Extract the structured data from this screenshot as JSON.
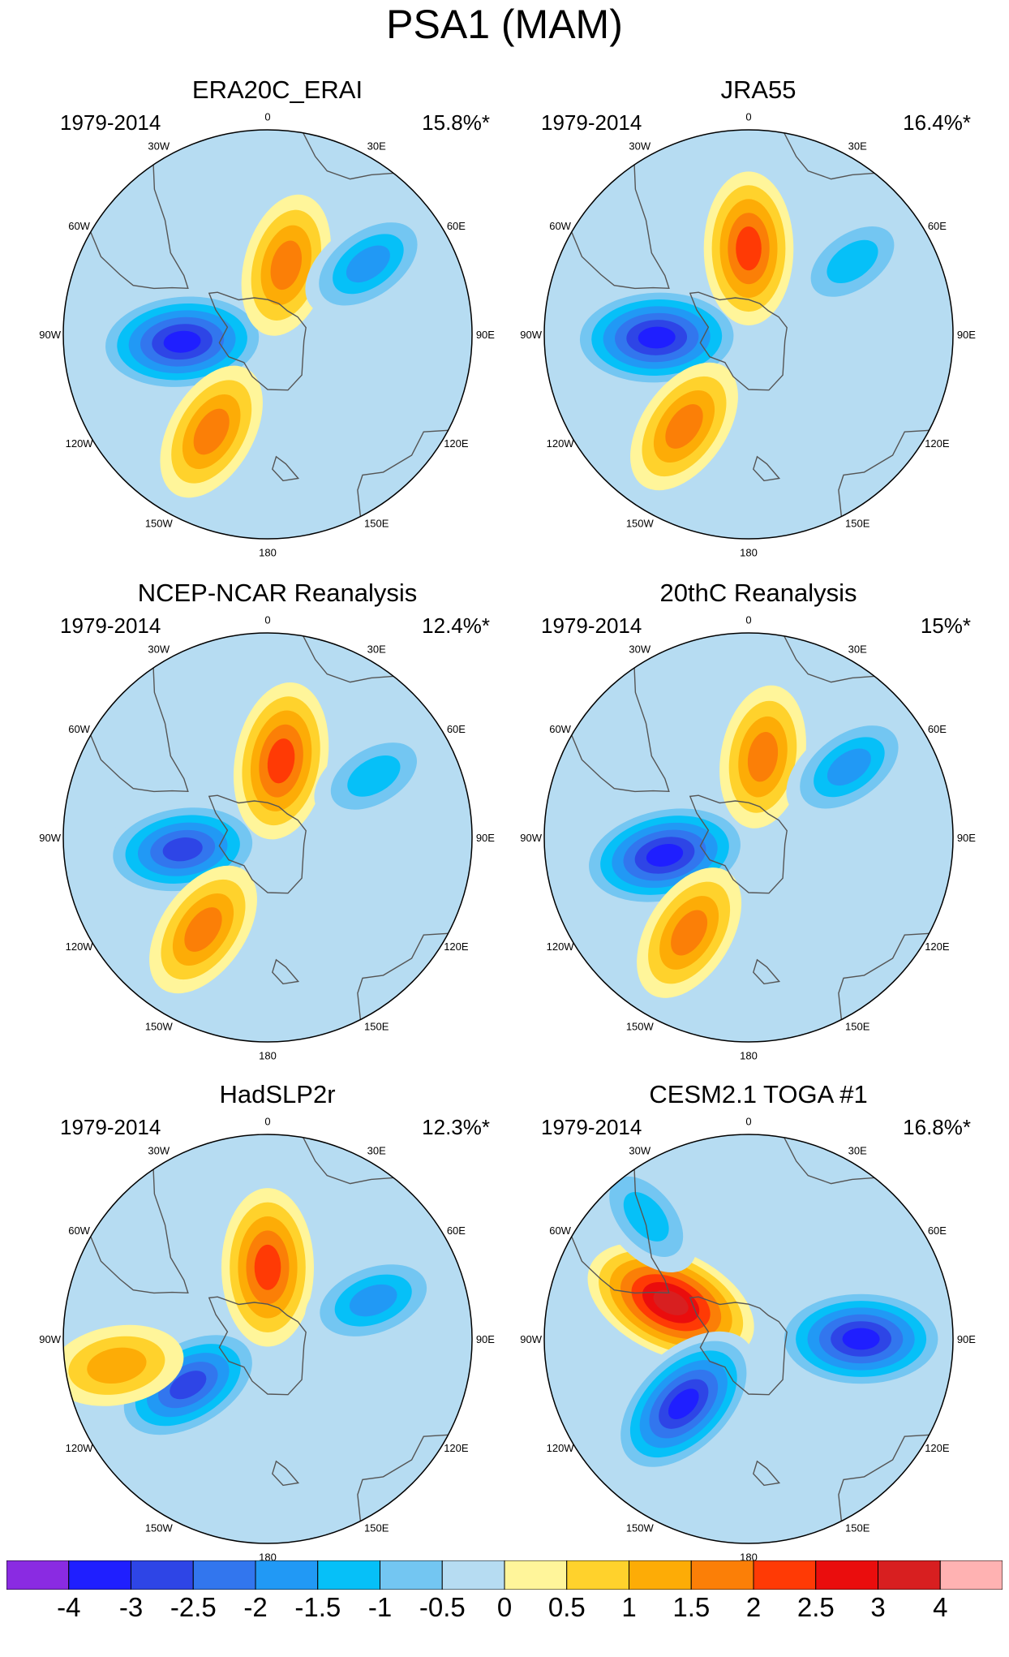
{
  "figure": {
    "title": "PSA1 (MAM)",
    "longitude_labels": [
      "0",
      "30E",
      "60E",
      "90E",
      "120E",
      "150E",
      "180",
      "150W",
      "120W",
      "90W",
      "60W",
      "30W"
    ],
    "panels": [
      {
        "title": "ERA20C_ERAI",
        "period": "1979-2014",
        "variance": "15.8%*",
        "features": [
          {
            "kind": "neg",
            "lon": 265,
            "colat": 0.42,
            "peak": -3.0
          },
          {
            "kind": "pos",
            "lon": 210,
            "colat": 0.55,
            "peak": 1.6
          },
          {
            "kind": "pos",
            "lon": 15,
            "colat": 0.35,
            "peak": 1.6
          },
          {
            "kind": "neg",
            "lon": 55,
            "colat": 0.6,
            "peak": -1.5
          }
        ]
      },
      {
        "title": "JRA55",
        "period": "1979-2014",
        "variance": "16.4%*",
        "features": [
          {
            "kind": "neg",
            "lon": 268,
            "colat": 0.45,
            "peak": -3.0
          },
          {
            "kind": "pos",
            "lon": 215,
            "colat": 0.55,
            "peak": 1.6
          },
          {
            "kind": "pos",
            "lon": 0,
            "colat": 0.42,
            "peak": 2.0
          },
          {
            "kind": "neg",
            "lon": 55,
            "colat": 0.62,
            "peak": -1.0
          }
        ]
      },
      {
        "title": "NCEP-NCAR Reanalysis",
        "period": "1979-2014",
        "variance": "12.4%*",
        "features": [
          {
            "kind": "neg",
            "lon": 262,
            "colat": 0.42,
            "peak": -2.5
          },
          {
            "kind": "pos",
            "lon": 215,
            "colat": 0.55,
            "peak": 1.6
          },
          {
            "kind": "pos",
            "lon": 10,
            "colat": 0.38,
            "peak": 2.2
          },
          {
            "kind": "neg",
            "lon": 60,
            "colat": 0.6,
            "peak": -1.0
          }
        ]
      },
      {
        "title": "20thC Reanalysis",
        "period": "1979-2014",
        "variance": "15%*",
        "features": [
          {
            "kind": "neg",
            "lon": 258,
            "colat": 0.42,
            "peak": -3.0
          },
          {
            "kind": "pos",
            "lon": 212,
            "colat": 0.55,
            "peak": 1.6
          },
          {
            "kind": "pos",
            "lon": 10,
            "colat": 0.4,
            "peak": 1.6
          },
          {
            "kind": "neg",
            "lon": 55,
            "colat": 0.6,
            "peak": -1.5
          }
        ]
      },
      {
        "title": "HadSLP2r",
        "period": "1979-2014",
        "variance": "12.3%*",
        "features": [
          {
            "kind": "neg",
            "lon": 240,
            "colat": 0.45,
            "peak": -2.5
          },
          {
            "kind": "pos",
            "lon": 260,
            "colat": 0.75,
            "peak": 1.2
          },
          {
            "kind": "pos",
            "lon": 0,
            "colat": 0.35,
            "peak": 2.2
          },
          {
            "kind": "neg",
            "lon": 70,
            "colat": 0.55,
            "peak": -1.5
          }
        ]
      },
      {
        "title": "CESM2.1 TOGA #1",
        "period": "1979-2014",
        "variance": "16.8%*",
        "features": [
          {
            "kind": "pos",
            "lon": 295,
            "colat": 0.42,
            "peak": 3.0
          },
          {
            "kind": "neg",
            "lon": 225,
            "colat": 0.45,
            "peak": -3.0
          },
          {
            "kind": "neg",
            "lon": 90,
            "colat": 0.55,
            "peak": -3.0
          },
          {
            "kind": "neg",
            "lon": 320,
            "colat": 0.78,
            "peak": -1.0
          }
        ]
      }
    ]
  },
  "colorbar": {
    "labels": [
      "-4",
      "-3",
      "-2.5",
      "-2",
      "-1.5",
      "-1",
      "-0.5",
      "0",
      "0.5",
      "1",
      "1.5",
      "2",
      "2.5",
      "3",
      "4"
    ],
    "colors": [
      "#8a2be2",
      "#1f1fff",
      "#2e45e6",
      "#3276ee",
      "#2199f5",
      "#06c0f8",
      "#73c6f2",
      "#b6dcf2",
      "#fff59a",
      "#ffd22c",
      "#fdac06",
      "#fb7f07",
      "#ff3a05",
      "#ea0d0d",
      "#d81f20",
      "#ffb2b2"
    ]
  }
}
